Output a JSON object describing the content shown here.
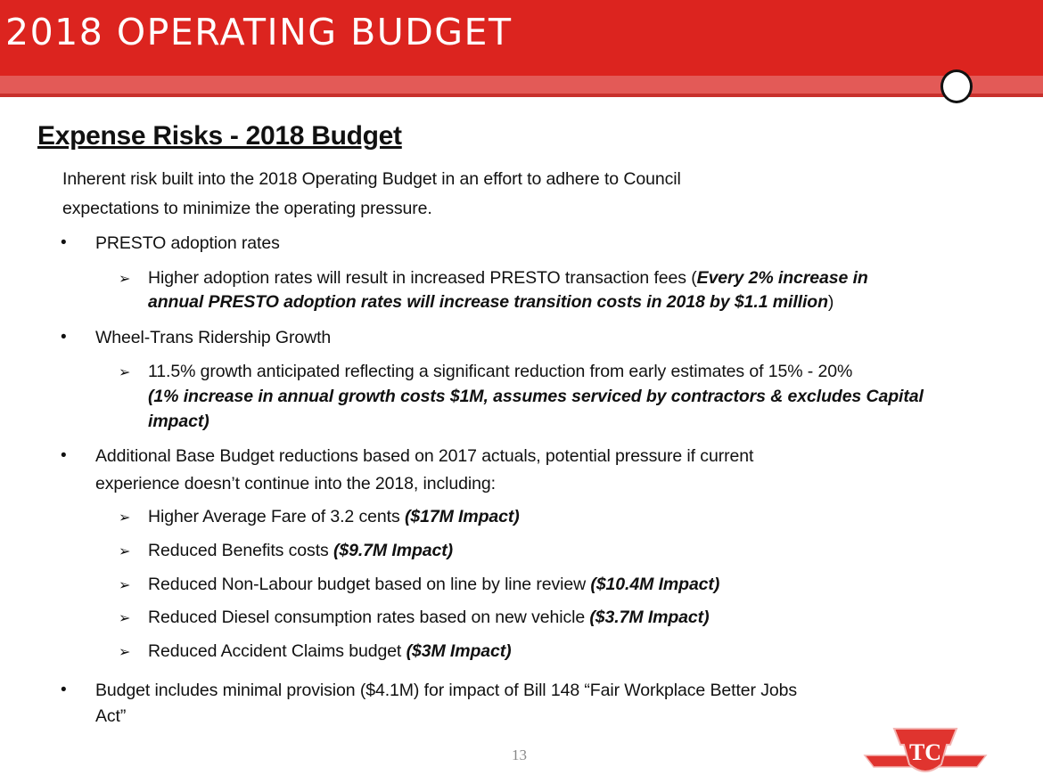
{
  "header": {
    "title": "2018 OPERATING BUDGET"
  },
  "slide": {
    "title": "Expense Risks - 2018 Budget",
    "intro": [
      "Inherent risk built into the 2018 Operating Budget in an effort to adhere to Council",
      "expectations to minimize the operating pressure."
    ],
    "b1": "PRESTO adoption rates",
    "b1s1a": "Higher adoption rates will result in increased PRESTO transaction fees (",
    "b1s1b": "Every 2% increase in",
    "b1s1c": "annual PRESTO adoption rates will increase transition costs in 2018 by $1.1 million",
    "b1s1d": ")",
    "b2": "Wheel-Trans Ridership Growth",
    "b2s1a": "11.5% growth anticipated reflecting a significant reduction from early estimates of 15% - 20%",
    "b2s1b": "(1% increase in annual growth costs $1M, assumes serviced by contractors & excludes Capital",
    "b2s1c": "impact)",
    "b3": [
      "Additional Base Budget reductions based on 2017 actuals, potential pressure if current",
      "experience doesn’t continue into the 2018, including:"
    ],
    "subs": [
      {
        "text": "Higher Average Fare of 3.2 cents ",
        "impact": "($17M Impact)"
      },
      {
        "text": "Reduced Benefits costs ",
        "impact": "($9.7M Impact)"
      },
      {
        "text": "Reduced Non-Labour budget based on line by line review ",
        "impact": "($10.4M Impact)"
      },
      {
        "text": "Reduced Diesel consumption rates based on new vehicle ",
        "impact": "($3.7M Impact)"
      },
      {
        "text": "Reduced Accident Claims budget ",
        "impact": "($3M Impact)"
      }
    ],
    "b4": [
      "Budget includes minimal provision ($4.1M) for impact of Bill 148 “Fair Workplace Better Jobs",
      "Act”"
    ],
    "bullet": "•",
    "arrow": "➢",
    "page_number": "13"
  },
  "logo": {
    "text": "TTC",
    "color": "#dc241f"
  },
  "colors": {
    "header": "#dc241f",
    "band": "#e35a57"
  }
}
